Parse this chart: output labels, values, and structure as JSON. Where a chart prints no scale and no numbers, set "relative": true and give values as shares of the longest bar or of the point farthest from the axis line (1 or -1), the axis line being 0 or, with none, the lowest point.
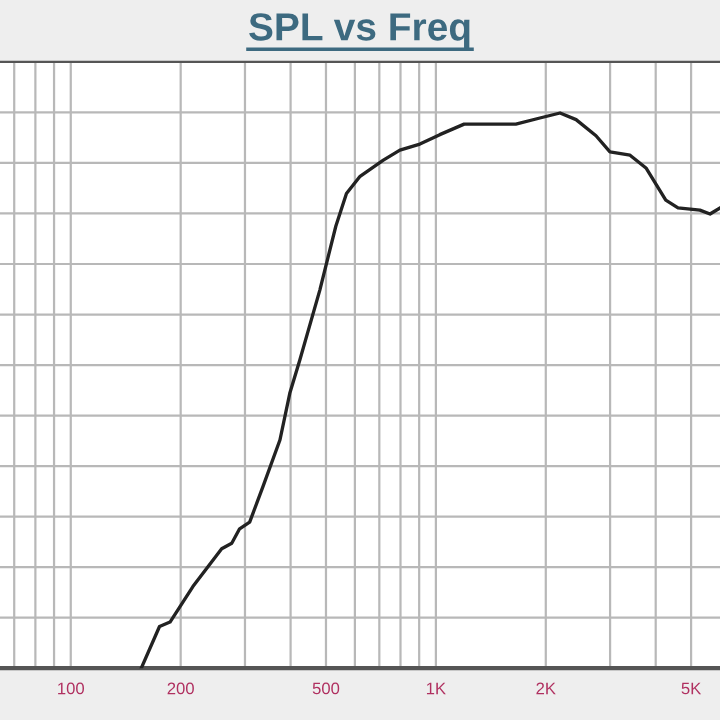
{
  "chart_data": {
    "type": "line",
    "title": "SPL vs Freq",
    "relative": true,
    "log": "x",
    "grid": true,
    "tick_labels": "x",
    "marker": "none",
    "line_style": "solid",
    "xlim": [
      64,
      6000
    ],
    "xticks": [
      {
        "value": 70,
        "label": null
      },
      {
        "value": 80,
        "label": null
      },
      {
        "value": 90,
        "label": null
      },
      100,
      200,
      {
        "value": 300,
        "label": null
      },
      {
        "value": 400,
        "label": null
      },
      500,
      {
        "value": 600,
        "label": null
      },
      {
        "value": 700,
        "label": null
      },
      {
        "value": 800,
        "label": null
      },
      {
        "value": 900,
        "label": null
      },
      {
        "value": 1000,
        "label": "1K"
      },
      {
        "value": 2000,
        "label": "2K"
      },
      {
        "value": 3000,
        "label": null
      },
      {
        "value": 4000,
        "label": null
      },
      {
        "value": 5000,
        "label": "5K"
      }
    ],
    "series": [
      {
        "color": "#222222",
        "x": [
          156,
          175,
          187,
          216,
          259,
          276,
          290,
          309,
          336,
          374,
          398,
          424,
          481,
          532,
          569,
          620,
          718,
          797,
          904,
          1025,
          1195,
          1406,
          1656,
          1927,
          2188,
          2421,
          2745,
          2997,
          3402,
          3762,
          4262,
          4604,
          5285,
          5634,
          6000
        ],
        "values": [
          0,
          0.075,
          0.083,
          0.147,
          0.215,
          0.225,
          0.251,
          0.263,
          0.327,
          0.411,
          0.495,
          0.555,
          0.681,
          0.796,
          0.855,
          0.886,
          0.915,
          0.933,
          0.944,
          0.961,
          0.98,
          0.98,
          0.98,
          0.991,
          1,
          0.988,
          0.959,
          0.93,
          0.924,
          0.901,
          0.843,
          0.829,
          0.825,
          0.818,
          0.829
        ]
      }
    ]
  }
}
